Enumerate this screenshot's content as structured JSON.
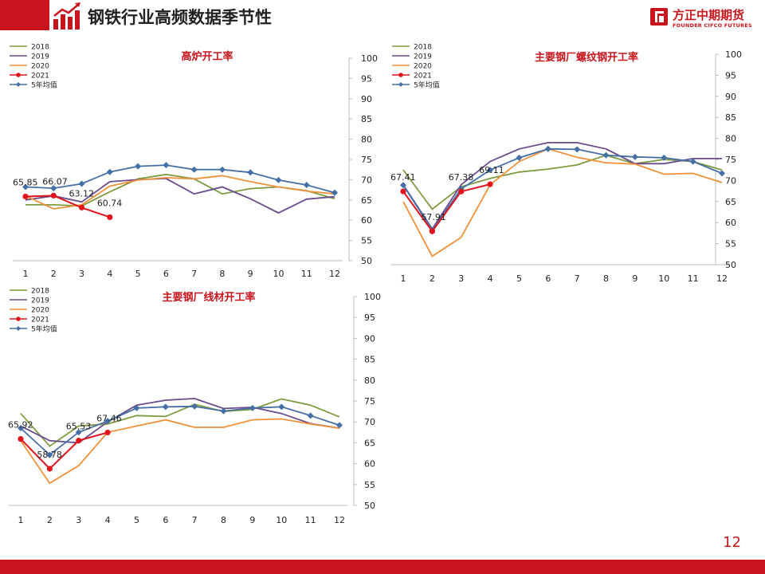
{
  "header": {
    "title": "钢铁行业高频数据季节性",
    "logo_cn": "方正中期期货",
    "logo_en": "FOUNDER CIFCO FUTURES",
    "accent": "#c8151d"
  },
  "footer": {
    "page_number": "12"
  },
  "series_colors": {
    "2018": "#7f9b3f",
    "2019": "#6a4b8c",
    "2020": "#f0913a",
    "2021": "#e0141c",
    "5年均值": "#4470a6"
  },
  "chart_data": [
    {
      "type": "line",
      "title": "高炉开工率",
      "x": [
        1,
        2,
        3,
        4,
        5,
        6,
        7,
        8,
        9,
        10,
        11,
        12
      ],
      "ylim": [
        50,
        100
      ],
      "yticks": [
        50,
        55,
        60,
        65,
        70,
        75,
        80,
        85,
        90,
        95,
        100
      ],
      "y_axis_side": "right",
      "legend_position": "top-left",
      "series": [
        {
          "name": "2018",
          "values": [
            63.8,
            63.8,
            63.5,
            67,
            70.2,
            71.3,
            70.2,
            66.5,
            67.8,
            68.2,
            67.3,
            65.3
          ]
        },
        {
          "name": "2019",
          "values": [
            65,
            66,
            64.5,
            69.5,
            70,
            70.3,
            66.5,
            68.2,
            65.3,
            61.8,
            65.2,
            65.8
          ]
        },
        {
          "name": "2020",
          "values": [
            66,
            62.8,
            63.8,
            68.4,
            69.9,
            70.5,
            70.2,
            71,
            69.5,
            68.2,
            67.2,
            66.5
          ]
        },
        {
          "name": "2021",
          "values": [
            65.85,
            66.07,
            63.12,
            60.74,
            null,
            null,
            null,
            null,
            null,
            null,
            null,
            null
          ]
        },
        {
          "name": "5年均值",
          "values": [
            68.2,
            67.9,
            69,
            71.9,
            73.3,
            73.6,
            72.5,
            72.5,
            71.8,
            69.9,
            68.7,
            66.8
          ]
        }
      ],
      "data_labels": [
        "65.85",
        "66.07",
        "63.12",
        "60.74"
      ]
    },
    {
      "type": "line",
      "title": "主要钢厂螺纹钢开工率",
      "x": [
        1,
        2,
        3,
        4,
        5,
        6,
        7,
        8,
        9,
        10,
        11,
        12
      ],
      "ylim": [
        50,
        100
      ],
      "yticks": [
        50,
        55,
        60,
        65,
        70,
        75,
        80,
        85,
        90,
        95,
        100
      ],
      "y_axis_side": "right",
      "legend_position": "top-left",
      "series": [
        {
          "name": "2018",
          "values": [
            72.5,
            63.2,
            68.5,
            70.5,
            72,
            72.7,
            73.7,
            76,
            74,
            75,
            74.5,
            72.5
          ]
        },
        {
          "name": "2019",
          "values": [
            69,
            58.5,
            69,
            74.5,
            77.5,
            79,
            79,
            77.5,
            74,
            74,
            75.2,
            75.2
          ]
        },
        {
          "name": "2020",
          "values": [
            65,
            52,
            56.5,
            69,
            74.5,
            77.5,
            75.5,
            74.2,
            73.9,
            71.5,
            71.7,
            69.5
          ]
        },
        {
          "name": "2021",
          "values": [
            67.41,
            57.91,
            67.38,
            69.11,
            null,
            null,
            null,
            null,
            null,
            null,
            null,
            null
          ]
        },
        {
          "name": "5年均值",
          "values": [
            68.9,
            58.2,
            68,
            72.5,
            75.4,
            77.5,
            77.4,
            76,
            75.6,
            75.4,
            74.5,
            71.7
          ]
        }
      ],
      "data_labels": [
        "67.41",
        "57.91",
        "67.38",
        "69.11"
      ]
    },
    {
      "type": "line",
      "title": "主要钢厂线材开工率",
      "x": [
        1,
        2,
        3,
        4,
        5,
        6,
        7,
        8,
        9,
        10,
        11,
        12
      ],
      "ylim": [
        50,
        100
      ],
      "yticks": [
        50,
        55,
        60,
        65,
        70,
        75,
        80,
        85,
        90,
        95,
        100
      ],
      "y_axis_side": "right",
      "legend_position": "top-left",
      "series": [
        {
          "name": "2018",
          "values": [
            72,
            64.2,
            69,
            69.5,
            71.5,
            71.3,
            74.2,
            72.5,
            73,
            75.5,
            74,
            71.2
          ]
        },
        {
          "name": "2019",
          "values": [
            69,
            65.5,
            65,
            70,
            74,
            75.2,
            75.6,
            73.2,
            73.5,
            72,
            69.6,
            68.5
          ]
        },
        {
          "name": "2020",
          "values": [
            65.5,
            55.3,
            59.5,
            67.5,
            69,
            70.5,
            68.7,
            68.7,
            70.5,
            70.7,
            69.5,
            68.5
          ]
        },
        {
          "name": "2021",
          "values": [
            65.92,
            58.78,
            65.53,
            67.46,
            null,
            null,
            null,
            null,
            null,
            null,
            null,
            null
          ]
        },
        {
          "name": "5年均值",
          "values": [
            68.5,
            62.1,
            67.5,
            70.2,
            73.3,
            73.6,
            73.7,
            72.6,
            73.3,
            73.6,
            71.5,
            69.2
          ]
        }
      ],
      "data_labels": [
        "65.92",
        "58.78",
        "65.53",
        "67.46"
      ]
    }
  ]
}
